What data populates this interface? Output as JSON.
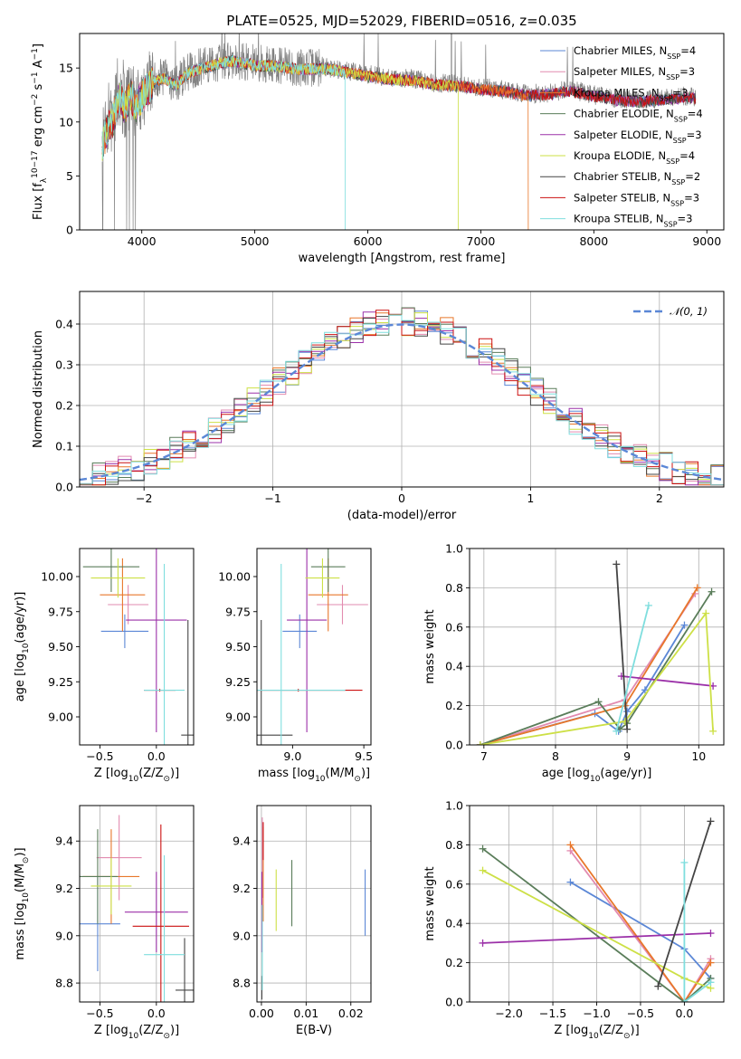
{
  "figure": {
    "title": "PLATE=0525, MJD=52029, FIBERID=0516, z=0.035",
    "models": [
      {
        "name": "Chabrier MILES",
        "nssp": "4",
        "color": "#5b87d6"
      },
      {
        "name": "Salpeter MILES",
        "nssp": "3",
        "color": "#e28bb0"
      },
      {
        "name": "Kroupa MILES",
        "nssp": "3",
        "color": "#e8772a"
      },
      {
        "name": "Chabrier ELODIE",
        "nssp": "4",
        "color": "#5a7d5a"
      },
      {
        "name": "Salpeter ELODIE",
        "nssp": "3",
        "color": "#9b30a8"
      },
      {
        "name": "Kroupa ELODIE",
        "nssp": "4",
        "color": "#cde046"
      },
      {
        "name": "Chabrier STELIB",
        "nssp": "2",
        "color": "#444444"
      },
      {
        "name": "Salpeter STELIB",
        "nssp": "3",
        "color": "#cc1111"
      },
      {
        "name": "Kroupa STELIB",
        "nssp": "3",
        "color": "#7fdede"
      }
    ]
  },
  "chart_data": [
    {
      "id": "spectrum",
      "type": "line",
      "xlabel": "wavelength [Angstrom, rest frame]",
      "ylabel": "Flux [f",
      "ylabel_parts": [
        "Flux [f",
        "λ",
        "10",
        "−17",
        " erg cm",
        "−2",
        " s",
        "−1",
        " A",
        "−1",
        "]"
      ],
      "xlim": [
        3450,
        9150
      ],
      "ylim": [
        0,
        18.2
      ],
      "xticks": [
        "4000",
        "5000",
        "6000",
        "7000",
        "8000",
        "9000"
      ],
      "yticks": [
        "0",
        "5",
        "10",
        "15"
      ],
      "legend_position": "top-right",
      "legend_entries": [
        {
          "label": "Chabrier MILES, N",
          "sub": "SSP",
          "tail": "=4"
        },
        {
          "label": "Salpeter MILES, N",
          "sub": "SSP",
          "tail": "=3"
        },
        {
          "label": "Kroupa MILES, N",
          "sub": "SSP",
          "tail": "=3"
        },
        {
          "label": "Chabrier ELODIE, N",
          "sub": "SSP",
          "tail": "=4"
        },
        {
          "label": "Salpeter ELODIE, N",
          "sub": "SSP",
          "tail": "=3"
        },
        {
          "label": "Kroupa ELODIE, N",
          "sub": "SSP",
          "tail": "=4"
        },
        {
          "label": "Chabrier STELIB, N",
          "sub": "SSP",
          "tail": "=2"
        },
        {
          "label": "Salpeter STELIB, N",
          "sub": "SSP",
          "tail": "=3"
        },
        {
          "label": "Kroupa STELIB, N",
          "sub": "SSP",
          "tail": "=3"
        }
      ],
      "observed_curve": {
        "wavelength": [
          3650,
          3700,
          3750,
          3800,
          3850,
          3900,
          3950,
          4000,
          4100,
          4200,
          4300,
          4400,
          4500,
          4600,
          4700,
          4800,
          4900,
          5000,
          5200,
          5400,
          5600,
          5800,
          6000,
          6200,
          6400,
          6600,
          6800,
          7000,
          7200,
          7400,
          7600,
          7800,
          8000,
          8200,
          8400,
          8600,
          8800,
          8900
        ],
        "flux": [
          8.0,
          9.5,
          10.5,
          12.5,
          11.5,
          12.8,
          11.5,
          12.5,
          13.8,
          14.2,
          13.5,
          14.6,
          15.0,
          15.3,
          15.6,
          15.8,
          15.6,
          15.4,
          15.3,
          15.0,
          15.1,
          14.8,
          14.4,
          14.1,
          14.0,
          13.6,
          13.5,
          13.2,
          13.0,
          12.6,
          12.7,
          13.0,
          12.5,
          12.2,
          12.0,
          12.2,
          12.4,
          12.3
        ]
      },
      "model_cutoffs": [
        {
          "model": 2,
          "wavelength": 7420
        },
        {
          "model": 5,
          "wavelength": 6800
        },
        {
          "model": 8,
          "wavelength": 5800
        }
      ]
    },
    {
      "id": "residual-histogram",
      "type": "line",
      "xlabel": "(data-model)/error",
      "ylabel": "Normed distribution",
      "xlim": [
        -2.5,
        2.5
      ],
      "ylim": [
        0,
        0.48
      ],
      "xticks": [
        "−2",
        "−1",
        "0",
        "1",
        "2"
      ],
      "yticks": [
        "0.0",
        "0.1",
        "0.2",
        "0.3",
        "0.4"
      ],
      "grid": true,
      "legend_position": "top-right",
      "legend_label": "𝒩(0, 1)",
      "bin_width": 0.1,
      "normal_curve": {
        "mean": 0,
        "sigma": 1
      }
    },
    {
      "id": "age-vs-metallicity",
      "type": "scatter",
      "xlabel": "Z [log",
      "xlabel_parts": [
        "Z [log",
        "10",
        "(Z/Z",
        "⊙",
        ")]"
      ],
      "ylabel_parts": [
        "age  [log",
        "10",
        "(age/yr)]"
      ],
      "xlim": [
        -0.68,
        0.33
      ],
      "ylim": [
        8.8,
        10.2
      ],
      "xticks": [
        "−0.5",
        "0.0"
      ],
      "yticks": [
        "9.00",
        "9.25",
        "9.50",
        "9.75",
        "10.00"
      ],
      "points": [
        {
          "model": 0,
          "x": -0.28,
          "y": 9.61,
          "xerr": 0.21,
          "yerr": 0.12
        },
        {
          "model": 1,
          "x": -0.25,
          "y": 9.8,
          "xerr": 0.18,
          "yerr": 0.14
        },
        {
          "model": 2,
          "x": -0.3,
          "y": 9.87,
          "xerr": 0.2,
          "yerr": 0.26
        },
        {
          "model": 3,
          "x": -0.4,
          "y": 10.07,
          "xerr": 0.25,
          "yerr": 0.18
        },
        {
          "model": 4,
          "x": 0.0,
          "y": 9.69,
          "xerr": 0.27,
          "yerr": 0.8
        },
        {
          "model": 5,
          "x": -0.34,
          "y": 9.99,
          "xerr": 0.24,
          "yerr": 0.14
        },
        {
          "model": 6,
          "x": 0.28,
          "y": 8.87,
          "xerr": 0.06,
          "yerr": 0.82
        },
        {
          "model": 7,
          "x": 0.03,
          "y": 9.19,
          "xerr": 0.14,
          "yerr": 0.01
        },
        {
          "model": 8,
          "x": 0.07,
          "y": 9.19,
          "xerr": 0.18,
          "yerr": 0.9
        }
      ]
    },
    {
      "id": "age-vs-mass",
      "type": "scatter",
      "xlabel_parts": [
        "mass [log",
        "10",
        "(M/M",
        "⊙",
        ")]"
      ],
      "xlim": [
        8.75,
        9.55
      ],
      "ylim": [
        8.8,
        10.2
      ],
      "xticks": [
        "9.0",
        "9.5"
      ],
      "yticks": [
        "9.00",
        "9.25",
        "9.50",
        "9.75",
        "10.00"
      ],
      "points": [
        {
          "model": 0,
          "x": 9.05,
          "y": 9.61,
          "xerr": 0.12,
          "yerr": 0.12
        },
        {
          "model": 1,
          "x": 9.35,
          "y": 9.8,
          "xerr": 0.18,
          "yerr": 0.14
        },
        {
          "model": 2,
          "x": 9.25,
          "y": 9.87,
          "xerr": 0.14,
          "yerr": 0.26
        },
        {
          "model": 3,
          "x": 9.25,
          "y": 10.07,
          "xerr": 0.12,
          "yerr": 0.18
        },
        {
          "model": 4,
          "x": 9.1,
          "y": 9.69,
          "xerr": 0.14,
          "yerr": 0.8
        },
        {
          "model": 5,
          "x": 9.21,
          "y": 9.99,
          "xerr": 0.12,
          "yerr": 0.14
        },
        {
          "model": 6,
          "x": 8.78,
          "y": 8.87,
          "xerr": 0.22,
          "yerr": 0.82
        },
        {
          "model": 7,
          "x": 9.04,
          "y": 9.19,
          "xerr": 0.45,
          "yerr": 0.01
        },
        {
          "model": 8,
          "x": 8.92,
          "y": 9.19,
          "xerr": 0.45,
          "yerr": 0.9
        }
      ]
    },
    {
      "id": "mass-weight-vs-age",
      "type": "line",
      "xlabel_parts": [
        "age  [log",
        "10",
        "(age/yr)]"
      ],
      "ylabel": "mass weight",
      "xlim": [
        6.8,
        10.35
      ],
      "ylim": [
        0,
        1.0
      ],
      "xticks": [
        "7",
        "8",
        "9",
        "10"
      ],
      "yticks": [
        "0.0",
        "0.2",
        "0.4",
        "0.6",
        "0.8",
        "1.0"
      ],
      "grid": true,
      "series": [
        {
          "model": 0,
          "x": [
            6.95,
            8.55,
            8.88,
            9.0,
            9.25,
            9.8
          ],
          "y": [
            0.0,
            0.16,
            0.07,
            0.17,
            0.28,
            0.61
          ]
        },
        {
          "model": 1,
          "x": [
            6.95,
            8.97,
            9.95
          ],
          "y": [
            0.0,
            0.23,
            0.77
          ]
        },
        {
          "model": 2,
          "x": [
            6.95,
            8.97,
            9.98
          ],
          "y": [
            0.0,
            0.2,
            0.8
          ]
        },
        {
          "model": 3,
          "x": [
            6.95,
            8.6,
            8.9,
            9.0,
            10.18
          ],
          "y": [
            0.0,
            0.22,
            0.08,
            0.11,
            0.78
          ]
        },
        {
          "model": 4,
          "x": [
            8.92,
            10.2
          ],
          "y": [
            0.35,
            0.3
          ]
        },
        {
          "model": 5,
          "x": [
            6.95,
            8.97,
            10.1,
            10.2
          ],
          "y": [
            0.0,
            0.12,
            0.67,
            0.07
          ]
        },
        {
          "model": 6,
          "x": [
            8.85,
            9.0
          ],
          "y": [
            0.92,
            0.08
          ]
        },
        {
          "model": 8,
          "x": [
            8.85,
            9.3
          ],
          "y": [
            0.07,
            0.71
          ]
        }
      ]
    },
    {
      "id": "mass-vs-metallicity",
      "type": "scatter",
      "xlabel_parts": [
        "Z [log",
        "10",
        "(Z/Z",
        "⊙",
        ")]"
      ],
      "ylabel_parts": [
        "mass [log",
        "10",
        "(M/M",
        "⊙",
        ")]"
      ],
      "xlim": [
        -0.68,
        0.33
      ],
      "ylim": [
        8.72,
        9.55
      ],
      "xticks": [
        "−0.5",
        "0.0"
      ],
      "yticks": [
        "8.8",
        "9.0",
        "9.2",
        "9.4"
      ],
      "grid": true,
      "points": [
        {
          "model": 0,
          "x": -0.52,
          "y": 9.05,
          "xerr": 0.2,
          "yerr": 0.2
        },
        {
          "model": 1,
          "x": -0.33,
          "y": 9.33,
          "xerr": 0.2,
          "yerr": 0.18
        },
        {
          "model": 2,
          "x": -0.4,
          "y": 9.25,
          "xerr": 0.25,
          "yerr": 0.2
        },
        {
          "model": 3,
          "x": -0.52,
          "y": 9.25,
          "xerr": 0.18,
          "yerr": 0.2
        },
        {
          "model": 4,
          "x": 0.0,
          "y": 9.1,
          "xerr": 0.28,
          "yerr": 0.17
        },
        {
          "model": 5,
          "x": -0.4,
          "y": 9.21,
          "xerr": 0.18,
          "yerr": 0.12
        },
        {
          "model": 6,
          "x": 0.25,
          "y": 8.77,
          "xerr": 0.08,
          "yerr": 0.22
        },
        {
          "model": 7,
          "x": 0.04,
          "y": 9.04,
          "xerr": 0.25,
          "yerr": 0.43
        },
        {
          "model": 8,
          "x": 0.07,
          "y": 8.92,
          "xerr": 0.18,
          "yerr": 0.42
        }
      ]
    },
    {
      "id": "mass-vs-ebv",
      "type": "scatter",
      "xlabel": "E(B-V)",
      "xlim": [
        -0.001,
        0.0245
      ],
      "ylim": [
        8.72,
        9.55
      ],
      "xticks": [
        "0.00",
        "0.01",
        "0.02"
      ],
      "yticks": [
        "8.8",
        "9.0",
        "9.2",
        "9.4"
      ],
      "grid": true,
      "points": [
        {
          "model": 0,
          "x": 0.0232,
          "y": 9.14,
          "yerr": 0.14
        },
        {
          "model": 1,
          "x": 0.0002,
          "y": 9.33,
          "yerr": 0.17
        },
        {
          "model": 2,
          "x": 0.0004,
          "y": 9.26,
          "yerr": 0.2
        },
        {
          "model": 3,
          "x": 0.0068,
          "y": 9.18,
          "yerr": 0.14
        },
        {
          "model": 4,
          "x": 0.0001,
          "y": 9.1,
          "yerr": 0.17
        },
        {
          "model": 5,
          "x": 0.0033,
          "y": 9.15,
          "yerr": 0.13
        },
        {
          "model": 6,
          "x": 0.0001,
          "y": 8.78,
          "yerr": 0.05
        },
        {
          "model": 7,
          "x": 0.0004,
          "y": 9.4,
          "yerr": 0.08
        },
        {
          "model": 8,
          "x": 0.0002,
          "y": 8.95,
          "yerr": 0.18
        }
      ]
    },
    {
      "id": "mass-weight-vs-metallicity",
      "type": "line",
      "xlabel_parts": [
        "Z [log",
        "10",
        "(Z/Z",
        "⊙",
        ")]"
      ],
      "ylabel": "mass weight",
      "xlim": [
        -2.45,
        0.45
      ],
      "ylim": [
        0,
        1.0
      ],
      "xticks": [
        "−2.0",
        "−1.5",
        "−1.0",
        "−0.5",
        "0.0"
      ],
      "yticks": [
        "0.0",
        "0.2",
        "0.4",
        "0.6",
        "0.8",
        "1.0"
      ],
      "grid": true,
      "series": [
        {
          "model": 0,
          "x": [
            -1.3,
            0.0,
            0.3
          ],
          "y": [
            0.61,
            0.27,
            0.12
          ]
        },
        {
          "model": 1,
          "x": [
            -1.3,
            0.0,
            0.3
          ],
          "y": [
            0.77,
            0.0,
            0.22
          ]
        },
        {
          "model": 2,
          "x": [
            -1.3,
            0.0,
            0.3
          ],
          "y": [
            0.8,
            0.0,
            0.2
          ]
        },
        {
          "model": 3,
          "x": [
            -2.3,
            0.0,
            0.3
          ],
          "y": [
            0.78,
            0.0,
            0.12
          ]
        },
        {
          "model": 4,
          "x": [
            -2.3,
            0.3
          ],
          "y": [
            0.3,
            0.35
          ]
        },
        {
          "model": 5,
          "x": [
            -2.3,
            0.0,
            0.3
          ],
          "y": [
            0.67,
            0.12,
            0.07
          ]
        },
        {
          "model": 6,
          "x": [
            -0.3,
            0.3
          ],
          "y": [
            0.08,
            0.92
          ]
        },
        {
          "model": 8,
          "x": [
            0.0,
            0.0,
            0.3
          ],
          "y": [
            0.71,
            0.0,
            0.1
          ]
        }
      ]
    }
  ]
}
